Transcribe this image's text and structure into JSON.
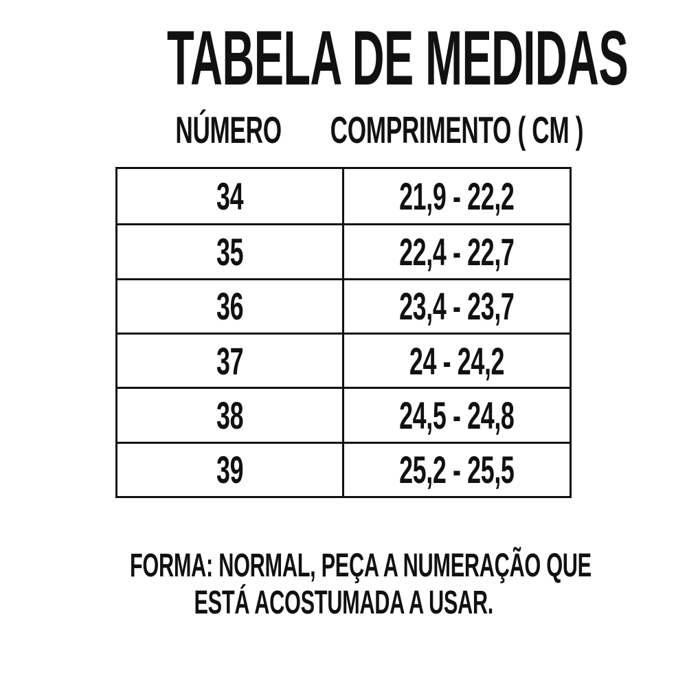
{
  "title": "TABELA DE MEDIDAS",
  "table": {
    "headers": {
      "numero": "NÚMERO",
      "comprimento": "COMPRIMENTO ( CM )"
    },
    "rows": [
      {
        "numero": "34",
        "comprimento": "21,9 - 22,2"
      },
      {
        "numero": "35",
        "comprimento": "22,4 - 22,7"
      },
      {
        "numero": "36",
        "comprimento": "23,4 - 23,7"
      },
      {
        "numero": "37",
        "comprimento": "24 - 24,2"
      },
      {
        "numero": "38",
        "comprimento": "24,5 - 24,8"
      },
      {
        "numero": "39",
        "comprimento": "25,2 - 25,5"
      }
    ]
  },
  "footer": {
    "line1": "FORMA: NORMAL, PEÇA A NUMERAÇÃO QUE",
    "line2": "ESTÁ ACOSTUMADA A USAR."
  },
  "colors": {
    "background": "#ffffff",
    "text": "#111111",
    "table_border": "#111111"
  },
  "chart_data": {
    "type": "table",
    "title": "TABELA DE MEDIDAS",
    "columns": [
      "NÚMERO",
      "COMPRIMENTO ( CM )"
    ],
    "rows": [
      [
        "34",
        "21,9 - 22,2"
      ],
      [
        "35",
        "22,4 - 22,7"
      ],
      [
        "36",
        "23,4 - 23,7"
      ],
      [
        "37",
        "24 - 24,2"
      ],
      [
        "38",
        "24,5 - 24,8"
      ],
      [
        "39",
        "25,2 - 25,5"
      ]
    ],
    "units": "cm",
    "note": "FORMA: NORMAL, PEÇA A NUMERAÇÃO QUE ESTÁ ACOSTUMADA A USAR.",
    "layout": {
      "grid": true,
      "legend": "none"
    }
  }
}
